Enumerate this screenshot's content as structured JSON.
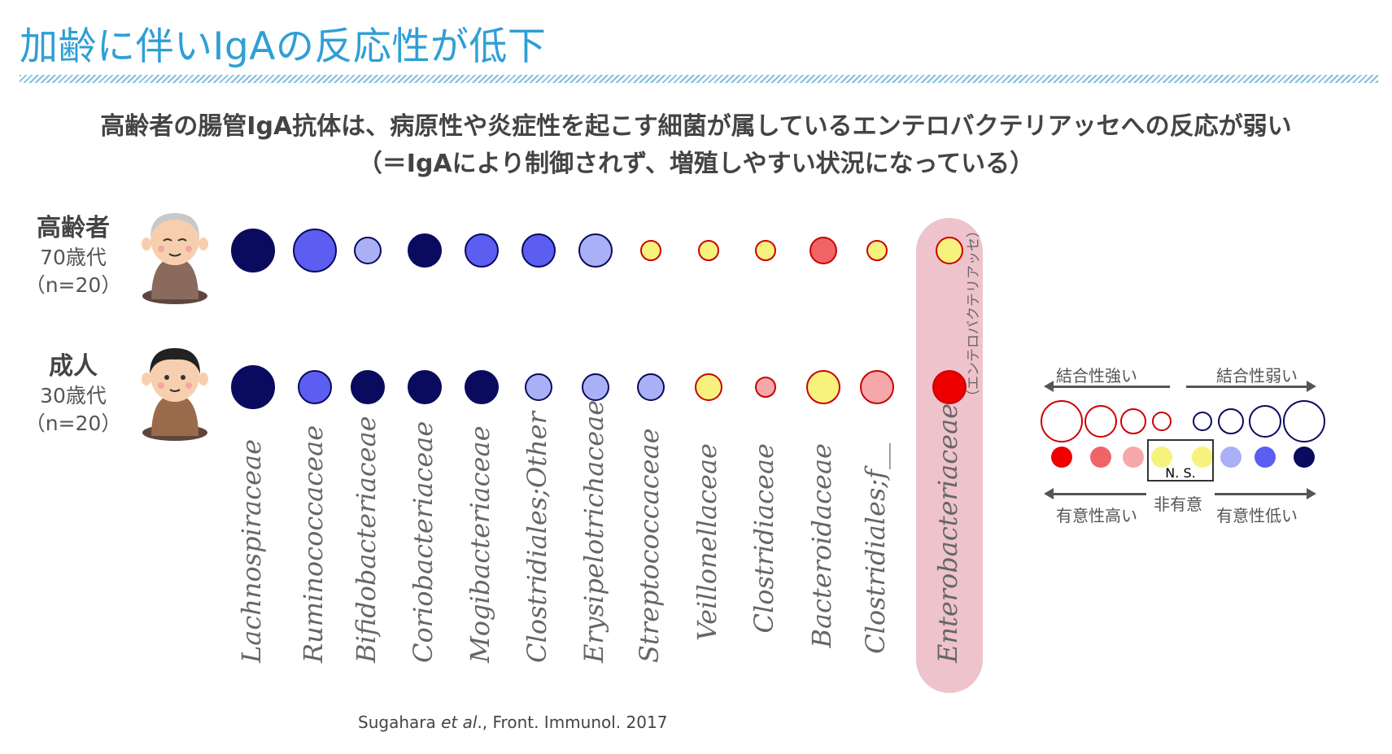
{
  "title": "加齢に伴いIgAの反応性が低下",
  "subtitle_line1": "高齢者の腸管IgA抗体は、病原性や炎症性を起こす細菌が属しているエンテロバクテリアッセへの反応が弱い",
  "subtitle_line2": "（＝IgAにより制御されず、増殖しやすい状況になっている）",
  "groups": [
    {
      "name": "高齢者",
      "age": "70歳代",
      "n": "（n=20）"
    },
    {
      "name": "成人",
      "age": "30歳代",
      "n": "（n=20）"
    }
  ],
  "chart_data": {
    "type": "dot-matrix",
    "rows": [
      "高齢者",
      "成人"
    ],
    "taxa": [
      "Lachnospiraceae",
      "Ruminococcaceae",
      "Bifidobacteriaceae",
      "Coriobacteriaceae",
      "Mogibacteriaceae",
      "Clostridiales;Other",
      "Erysipelotrichaceae",
      "Streptococcaceae",
      "Veillonellaceae",
      "Clostridiaceae",
      "Bacteroidaceae",
      "Clostridiales;f__",
      "Enterobacteriaceae"
    ],
    "highlighted_taxon": "Enterobacteriaceae",
    "highlighted_taxon_note": "（エンテロバクテリアッセ）",
    "highlight_color": "#efc3cc",
    "colors": {
      "dark_blue": "#0a0a5e",
      "blue": "#5b5ef0",
      "light_blue": "#aab0f5",
      "yellow": "#f7f27e",
      "light_red": "#f6a8ab",
      "mid_red": "#ef6467",
      "red": "#ee0000"
    },
    "elderly": [
      {
        "color": "dark_blue",
        "size": 4
      },
      {
        "color": "blue",
        "size": 4
      },
      {
        "color": "light_blue",
        "size": 2
      },
      {
        "color": "dark_blue",
        "size": 3
      },
      {
        "color": "blue",
        "size": 3
      },
      {
        "color": "blue",
        "size": 3
      },
      {
        "color": "light_blue",
        "size": 3
      },
      {
        "color": "yellow",
        "size": 1
      },
      {
        "color": "yellow",
        "size": 1
      },
      {
        "color": "yellow",
        "size": 1
      },
      {
        "color": "mid_red",
        "size": 2
      },
      {
        "color": "yellow",
        "size": 1
      },
      {
        "color": "yellow",
        "size": 2
      }
    ],
    "adult": [
      {
        "color": "dark_blue",
        "size": 4
      },
      {
        "color": "blue",
        "size": 3
      },
      {
        "color": "dark_blue",
        "size": 3
      },
      {
        "color": "dark_blue",
        "size": 3
      },
      {
        "color": "dark_blue",
        "size": 3
      },
      {
        "color": "light_blue",
        "size": 2
      },
      {
        "color": "light_blue",
        "size": 2
      },
      {
        "color": "light_blue",
        "size": 2
      },
      {
        "color": "yellow",
        "size": 2
      },
      {
        "color": "light_red",
        "size": 1
      },
      {
        "color": "yellow",
        "size": 3
      },
      {
        "color": "light_red",
        "size": 3
      },
      {
        "color": "red",
        "size": 3
      }
    ]
  },
  "legend": {
    "strong_binding": "結合性強い",
    "weak_binding": "結合性弱い",
    "high_significance": "有意性高い",
    "low_significance": "有意性低い",
    "not_significant": "非有意",
    "ns": "N. S.",
    "size_row": [
      {
        "color": "none",
        "size": 4,
        "border": "#cc0000"
      },
      {
        "color": "none",
        "size": 3,
        "border": "#cc0000"
      },
      {
        "color": "none",
        "size": 2,
        "border": "#cc0000"
      },
      {
        "color": "none",
        "size": 1,
        "border": "#cc0000"
      },
      {
        "color": "none",
        "size": 1,
        "border": "#0a0a5e"
      },
      {
        "color": "none",
        "size": 2,
        "border": "#0a0a5e"
      },
      {
        "color": "none",
        "size": 3,
        "border": "#0a0a5e"
      },
      {
        "color": "none",
        "size": 4,
        "border": "#0a0a5e"
      }
    ],
    "color_row": [
      "red",
      "mid_red",
      "light_red",
      "yellow",
      "yellow",
      "light_blue",
      "blue",
      "dark_blue"
    ]
  },
  "citation_author": "Sugahara ",
  "citation_etal": "et al",
  "citation_rest": "., Front. Immunol. 2017"
}
